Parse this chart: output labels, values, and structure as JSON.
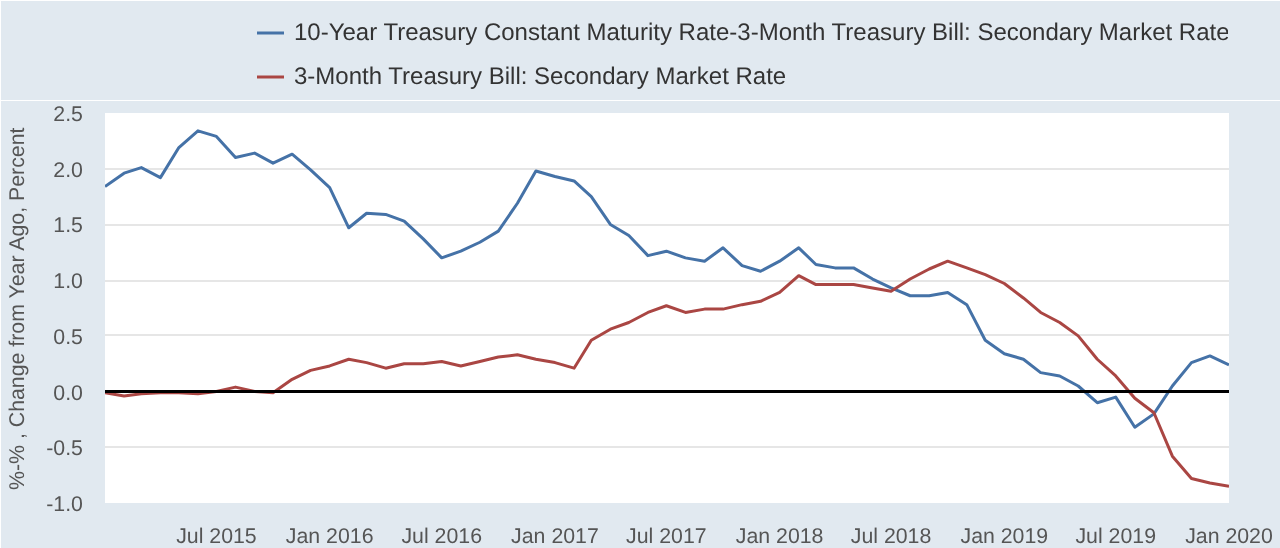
{
  "chart_data": {
    "type": "line",
    "ylabel": "%-% , Change from Year Ago, Percent",
    "x": [
      "2015-01",
      "2015-02",
      "2015-03",
      "2015-04",
      "2015-05",
      "2015-06",
      "2015-07",
      "2015-08",
      "2015-09",
      "2015-10",
      "2015-11",
      "2015-12",
      "2016-01",
      "2016-02",
      "2016-03",
      "2016-04",
      "2016-05",
      "2016-06",
      "2016-07",
      "2016-08",
      "2016-09",
      "2016-10",
      "2016-11",
      "2016-12",
      "2017-01",
      "2017-02",
      "2017-03",
      "2017-04",
      "2017-05",
      "2017-06",
      "2017-07",
      "2017-08",
      "2017-09",
      "2017-10",
      "2017-11",
      "2017-12",
      "2018-01",
      "2018-02",
      "2018-03",
      "2018-04",
      "2018-05",
      "2018-06",
      "2018-07",
      "2018-08",
      "2018-09",
      "2018-10",
      "2018-11",
      "2018-12",
      "2019-01",
      "2019-02",
      "2019-03",
      "2019-04",
      "2019-05",
      "2019-06",
      "2019-07",
      "2019-08",
      "2019-09",
      "2019-10",
      "2019-11",
      "2019-12",
      "2020-01"
    ],
    "series": [
      {
        "name": "10-Year Treasury Constant Maturity Rate-3-Month Treasury Bill: Secondary Market Rate",
        "color": "#4572a7",
        "values": [
          1.84,
          1.96,
          2.01,
          1.92,
          2.19,
          2.34,
          2.29,
          2.1,
          2.14,
          2.05,
          2.13,
          1.99,
          1.83,
          1.47,
          1.6,
          1.59,
          1.53,
          1.37,
          1.2,
          1.26,
          1.34,
          1.44,
          1.69,
          1.98,
          1.93,
          1.89,
          1.75,
          1.5,
          1.4,
          1.22,
          1.26,
          1.2,
          1.17,
          1.29,
          1.13,
          1.08,
          1.17,
          1.29,
          1.14,
          1.11,
          1.11,
          1.01,
          0.93,
          0.86,
          0.86,
          0.89,
          0.78,
          0.46,
          0.34,
          0.29,
          0.17,
          0.14,
          0.05,
          -0.1,
          -0.05,
          -0.32,
          -0.2,
          0.05,
          0.26,
          0.32,
          0.24
        ]
      },
      {
        "name": "3-Month Treasury Bill: Secondary Market Rate",
        "color": "#aa4643",
        "values": [
          -0.01,
          -0.04,
          -0.02,
          -0.01,
          -0.01,
          -0.02,
          0.0,
          0.04,
          0.0,
          -0.01,
          0.11,
          0.19,
          0.23,
          0.29,
          0.26,
          0.21,
          0.25,
          0.25,
          0.27,
          0.23,
          0.27,
          0.31,
          0.33,
          0.29,
          0.26,
          0.21,
          0.46,
          0.56,
          0.62,
          0.71,
          0.77,
          0.71,
          0.74,
          0.74,
          0.78,
          0.81,
          0.89,
          1.04,
          0.96,
          0.96,
          0.96,
          0.93,
          0.9,
          1.01,
          1.1,
          1.17,
          1.11,
          1.05,
          0.97,
          0.84,
          0.71,
          0.62,
          0.5,
          0.29,
          0.14,
          -0.06,
          -0.19,
          -0.58,
          -0.78,
          -0.82,
          -0.85
        ]
      }
    ],
    "xlim": [
      "2015-01",
      "2020-01"
    ],
    "xticks": [
      {
        "value": "2015-07",
        "label": "Jul 2015"
      },
      {
        "value": "2016-01",
        "label": "Jan 2016"
      },
      {
        "value": "2016-07",
        "label": "Jul 2016"
      },
      {
        "value": "2017-01",
        "label": "Jan 2017"
      },
      {
        "value": "2017-07",
        "label": "Jul 2017"
      },
      {
        "value": "2018-01",
        "label": "Jan 2018"
      },
      {
        "value": "2018-07",
        "label": "Jul 2018"
      },
      {
        "value": "2019-01",
        "label": "Jan 2019"
      },
      {
        "value": "2019-07",
        "label": "Jul 2019"
      },
      {
        "value": "2020-01",
        "label": "Jan 2020"
      }
    ],
    "ylim": [
      -1.0,
      2.5
    ],
    "yticks": [
      {
        "value": -1.0,
        "label": "-1.0"
      },
      {
        "value": -0.5,
        "label": "-0.5"
      },
      {
        "value": 0,
        "label": "0.0"
      },
      {
        "value": 0.5,
        "label": "0.5"
      },
      {
        "value": 1.0,
        "label": "1.0"
      },
      {
        "value": 1.5,
        "label": "1.5"
      },
      {
        "value": 2.0,
        "label": "2.0"
      },
      {
        "value": 2.5,
        "label": "2.5"
      }
    ],
    "ref_lines": [
      {
        "axis": "y",
        "value": 0,
        "color": "#000000"
      }
    ],
    "grid": "y",
    "legend": "top",
    "marker": "none",
    "line_style": "solid"
  }
}
